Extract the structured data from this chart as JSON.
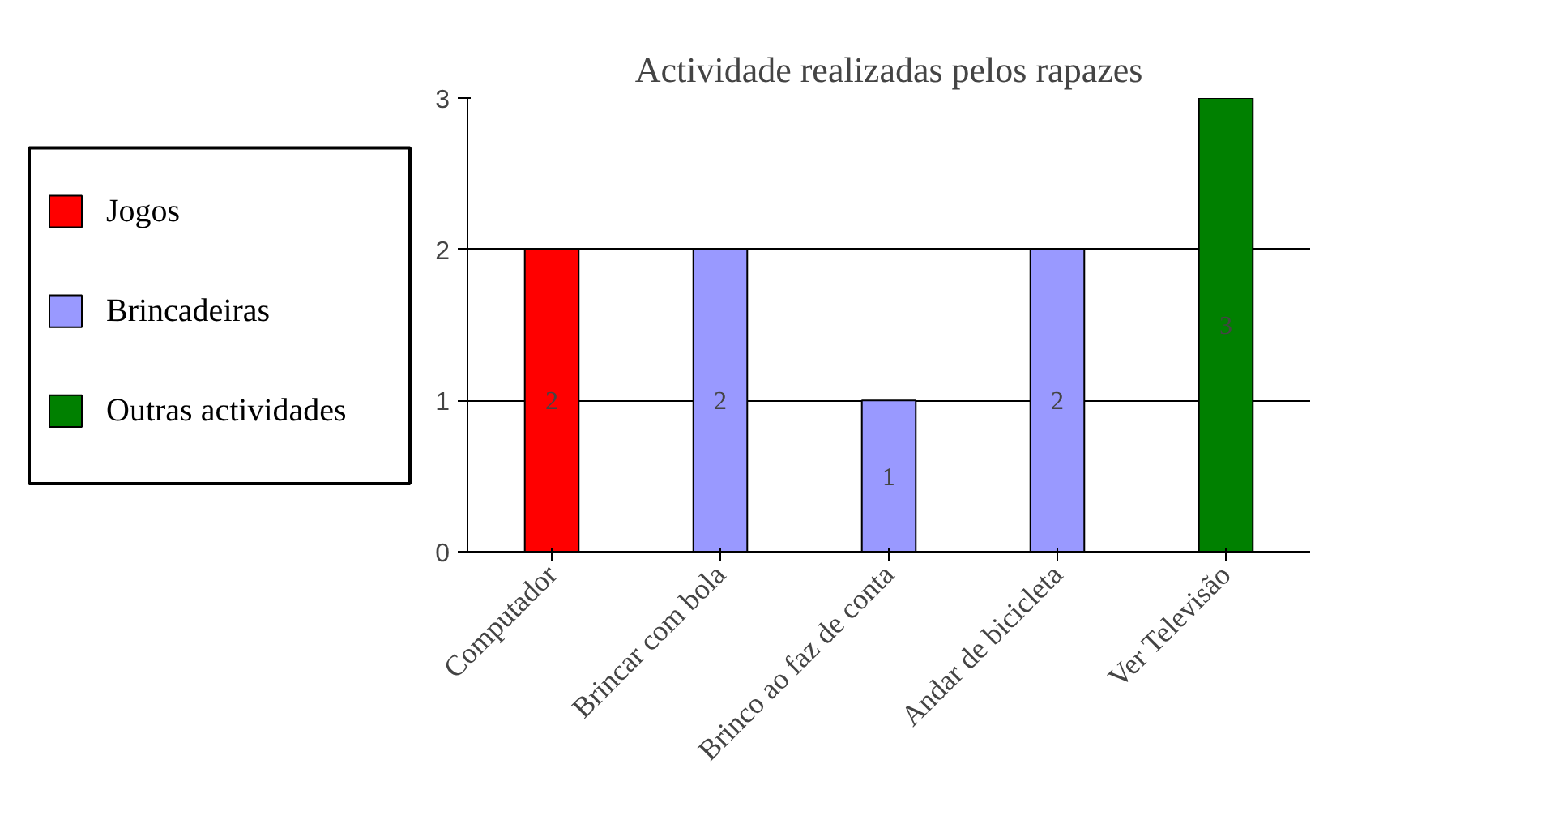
{
  "chart_data": {
    "type": "bar",
    "title": "Actividade realizadas pelos rapazes",
    "categories": [
      "Computador",
      "Brincar com bola",
      "Brinco ao faz de conta",
      "Andar de bicicleta",
      "Ver Televisão"
    ],
    "series": [
      {
        "name": "Jogos",
        "color": "#ff0000",
        "values": [
          2,
          null,
          null,
          null,
          null
        ]
      },
      {
        "name": "Brincadeiras",
        "color": "#9999ff",
        "values": [
          null,
          2,
          1,
          2,
          null
        ]
      },
      {
        "name": "Outras actividades",
        "color": "#008000",
        "values": [
          null,
          null,
          null,
          null,
          3
        ]
      }
    ],
    "ylim": [
      0,
      3
    ],
    "yticks": [
      0,
      1,
      2,
      3
    ],
    "grid": "y",
    "legend": "left",
    "data_labels": true
  }
}
